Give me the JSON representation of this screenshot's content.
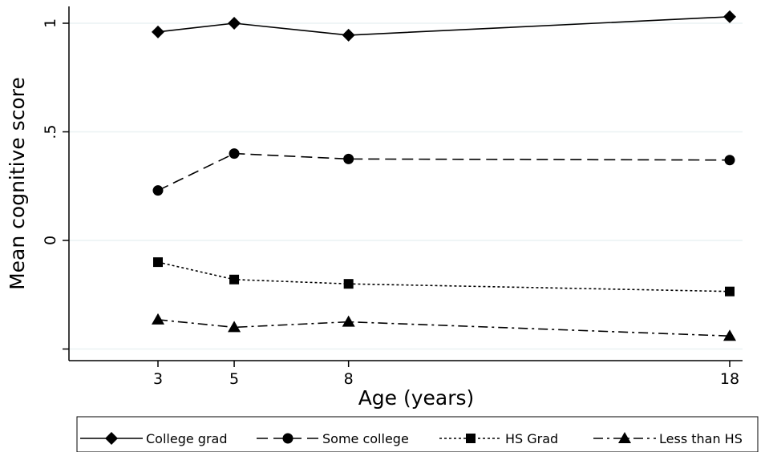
{
  "chart_data": {
    "type": "line",
    "title": "",
    "xlabel": "Age (years)",
    "ylabel": "Mean cognitive score",
    "x": [
      3,
      5,
      8,
      18
    ],
    "x_tick_labels": [
      "3",
      "5",
      "8",
      "18"
    ],
    "xlim": [
      0.8,
      18.1
    ],
    "y_ticks": [
      -0.5,
      0,
      0.5,
      1
    ],
    "y_tick_labels": [
      "",
      "0",
      ".5",
      "1"
    ],
    "ylim": [
      -0.55,
      1.08
    ],
    "grid": "horizontal",
    "legend_position": "bottom",
    "series": [
      {
        "name": "College grad",
        "values": [
          0.96,
          1.0,
          0.945,
          1.03
        ],
        "marker": "diamond",
        "line_style": "solid"
      },
      {
        "name": "Some college",
        "values": [
          0.23,
          0.4,
          0.375,
          0.37
        ],
        "marker": "circle",
        "line_style": "dashed"
      },
      {
        "name": "HS Grad",
        "values": [
          -0.1,
          -0.18,
          -0.2,
          -0.235
        ],
        "marker": "square",
        "line_style": "dotted"
      },
      {
        "name": "Less than HS",
        "values": [
          -0.365,
          -0.4,
          -0.375,
          -0.44
        ],
        "marker": "triangle",
        "line_style": "dashdot"
      }
    ]
  }
}
